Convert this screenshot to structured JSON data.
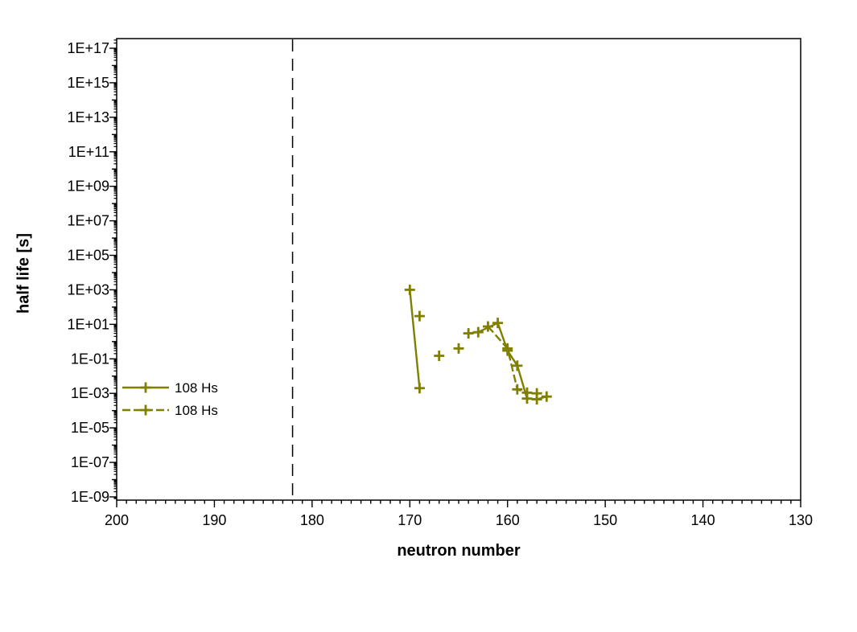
{
  "chart_data": {
    "type": "line",
    "title": "",
    "xlabel": "neutron number",
    "ylabel": "half life [s]",
    "grid": false,
    "legend_position": "inside-left-middle",
    "x_axis": {
      "min": 130,
      "max": 200,
      "reversed": true,
      "minor_step": 1,
      "tick_values": [
        200,
        190,
        180,
        170,
        160,
        150,
        140,
        130
      ],
      "tick_labels": [
        "200",
        "190",
        "180",
        "170",
        "160",
        "150",
        "140",
        "130"
      ]
    },
    "y_axis": {
      "scale": "log",
      "unit": "s",
      "min_exp": -9,
      "max_exp": 17,
      "tick_exps": [
        17,
        15,
        13,
        11,
        9,
        7,
        5,
        3,
        1,
        -1,
        -3,
        -5,
        -7,
        -9
      ],
      "tick_labels": [
        "1E+17",
        "1E+15",
        "1E+13",
        "1E+11",
        "1E+09",
        "1E+07",
        "1E+05",
        "1E+03",
        "1E+01",
        "1E-01",
        "1E-03",
        "1E-05",
        "1E-07",
        "1E-09"
      ]
    },
    "reference_line": {
      "x": 182,
      "style": "dashed",
      "color": "#000000"
    },
    "series": [
      {
        "name": "108 Hs",
        "line_style": "solid",
        "marker": "plus",
        "color": "#7f7f00",
        "points": [
          [
            170,
            1000
          ],
          [
            169,
            0.002
          ],
          null,
          [
            167,
            0.15
          ],
          null,
          [
            164,
            3.0
          ],
          [
            163,
            3.5
          ],
          [
            161,
            12
          ],
          [
            160,
            0.3
          ],
          [
            159,
            0.04
          ],
          [
            158,
            0.0005
          ],
          [
            157,
            0.00045
          ],
          [
            156,
            0.00065
          ]
        ]
      },
      {
        "name": "108 Hs",
        "line_style": "dashed",
        "marker": "plus",
        "color": "#7f7f00",
        "points": [
          [
            169,
            30
          ],
          null,
          [
            165,
            0.4
          ],
          null,
          [
            162,
            7.5
          ],
          [
            160,
            0.4
          ],
          [
            159,
            0.0017
          ],
          [
            158,
            0.0011
          ],
          [
            157,
            0.001
          ]
        ]
      }
    ]
  }
}
